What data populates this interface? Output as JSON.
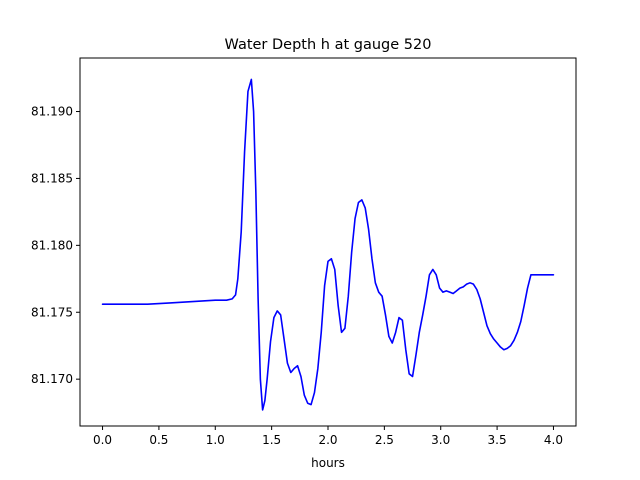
{
  "chart_data": {
    "type": "line",
    "title": "Water Depth h at gauge 520",
    "xlabel": "hours",
    "ylabel": "",
    "xlim": [
      -0.2,
      4.2
    ],
    "ylim": [
      81.1665,
      81.194
    ],
    "grid": false,
    "legend": "none",
    "colors": {
      "line": "#0000ff",
      "axes": "#000000",
      "background": "#ffffff"
    },
    "x_ticks": [
      {
        "value": 0.0,
        "label": "0.0"
      },
      {
        "value": 0.5,
        "label": "0.5"
      },
      {
        "value": 1.0,
        "label": "1.0"
      },
      {
        "value": 1.5,
        "label": "1.5"
      },
      {
        "value": 2.0,
        "label": "2.0"
      },
      {
        "value": 2.5,
        "label": "2.5"
      },
      {
        "value": 3.0,
        "label": "3.0"
      },
      {
        "value": 3.5,
        "label": "3.5"
      },
      {
        "value": 4.0,
        "label": "4.0"
      }
    ],
    "y_ticks": [
      {
        "value": 81.17,
        "label": "81.170"
      },
      {
        "value": 81.175,
        "label": "81.175"
      },
      {
        "value": 81.18,
        "label": "81.180"
      },
      {
        "value": 81.185,
        "label": "81.185"
      },
      {
        "value": 81.19,
        "label": "81.190"
      }
    ],
    "series": [
      {
        "x": [
          0.0,
          0.2,
          0.4,
          0.6,
          0.8,
          1.0,
          1.1,
          1.15,
          1.18,
          1.2,
          1.23,
          1.26,
          1.29,
          1.32,
          1.34,
          1.36,
          1.38,
          1.4,
          1.42,
          1.44,
          1.46,
          1.49,
          1.52,
          1.55,
          1.58,
          1.61,
          1.64,
          1.67,
          1.7,
          1.73,
          1.76,
          1.79,
          1.82,
          1.85,
          1.88,
          1.91,
          1.94,
          1.97,
          2.0,
          2.03,
          2.06,
          2.09,
          2.12,
          2.15,
          2.18,
          2.21,
          2.24,
          2.27,
          2.3,
          2.33,
          2.36,
          2.39,
          2.42,
          2.45,
          2.48,
          2.51,
          2.54,
          2.57,
          2.6,
          2.63,
          2.66,
          2.69,
          2.72,
          2.75,
          2.78,
          2.81,
          2.84,
          2.87,
          2.9,
          2.93,
          2.96,
          2.99,
          3.02,
          3.05,
          3.08,
          3.11,
          3.14,
          3.17,
          3.2,
          3.23,
          3.26,
          3.29,
          3.32,
          3.35,
          3.38,
          3.41,
          3.44,
          3.47,
          3.5,
          3.53,
          3.56,
          3.59,
          3.62,
          3.65,
          3.68,
          3.71,
          3.74,
          3.77,
          3.8,
          3.83,
          3.86,
          3.89,
          3.92,
          3.95,
          3.98,
          4.0
        ],
        "y": [
          81.1756,
          81.1756,
          81.1756,
          81.1757,
          81.1758,
          81.1759,
          81.1759,
          81.176,
          81.1763,
          81.1775,
          81.181,
          81.187,
          81.1915,
          81.1924,
          81.19,
          81.184,
          81.176,
          81.17,
          81.1677,
          81.1684,
          81.17,
          81.1728,
          81.1746,
          81.1751,
          81.1748,
          81.173,
          81.1712,
          81.1705,
          81.1708,
          81.171,
          81.1702,
          81.1688,
          81.1682,
          81.1681,
          81.169,
          81.1708,
          81.1735,
          81.177,
          81.1788,
          81.179,
          81.1782,
          81.1755,
          81.1735,
          81.1738,
          81.1762,
          81.1795,
          81.182,
          81.1832,
          81.1834,
          81.1828,
          81.1812,
          81.179,
          81.1772,
          81.1765,
          81.1762,
          81.1748,
          81.1732,
          81.1727,
          81.1735,
          81.1746,
          81.1744,
          81.1722,
          81.1704,
          81.1702,
          81.1718,
          81.1735,
          81.1748,
          81.1762,
          81.1778,
          81.1782,
          81.1778,
          81.1768,
          81.1765,
          81.1766,
          81.1765,
          81.1764,
          81.1766,
          81.1768,
          81.1769,
          81.1771,
          81.1772,
          81.1771,
          81.1767,
          81.176,
          81.175,
          81.174,
          81.1734,
          81.173,
          81.1727,
          81.1724,
          81.1722,
          81.1723,
          81.1725,
          81.1729,
          81.1735,
          81.1743,
          81.1755,
          81.1768,
          81.1778,
          81.1778,
          81.1778,
          81.1778,
          81.1778,
          81.1778,
          81.1778,
          81.1778
        ]
      }
    ]
  }
}
